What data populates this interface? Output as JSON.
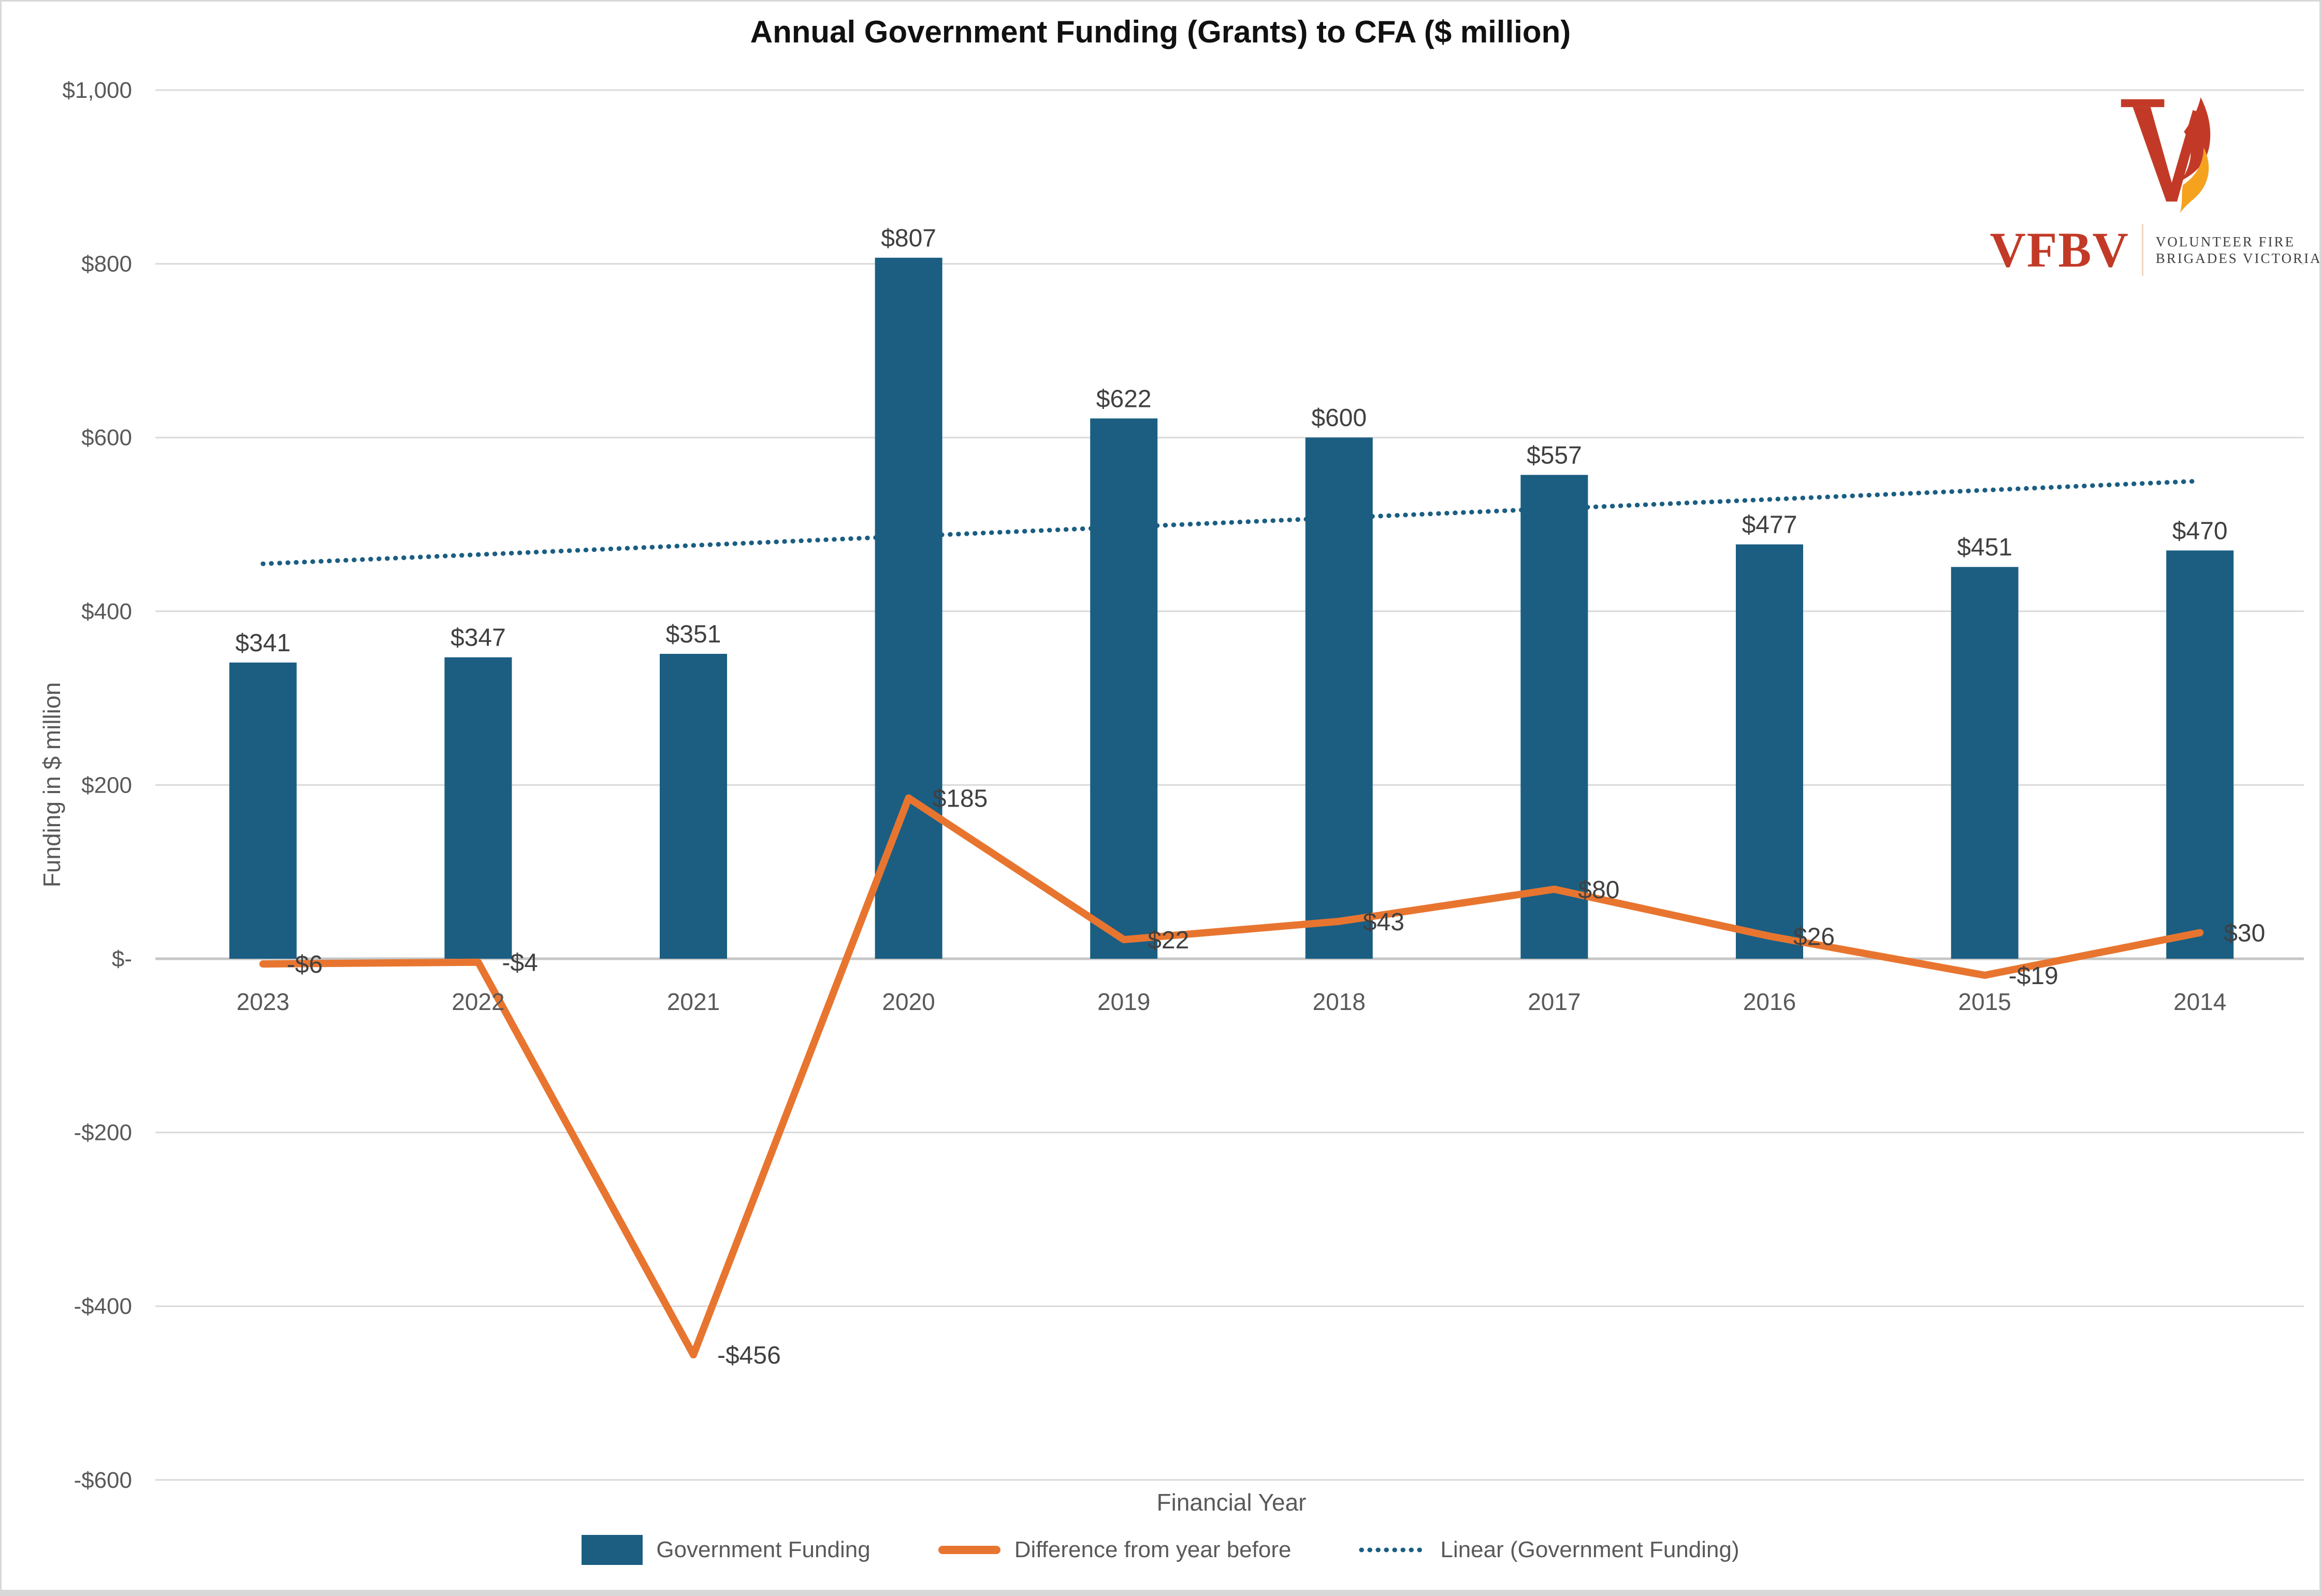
{
  "logo": {
    "acronym": "VFBV",
    "line1": "VOLUNTEER FIRE",
    "line2": "BRIGADES VICTORIA"
  },
  "colors": {
    "bar": "#1B5E82",
    "line": "#E8752F",
    "trend": "#1B5E82",
    "grid": "#D9D9D9",
    "axis_line": "#C6C6C6",
    "tick_text": "#595959",
    "data_label_text": "#404040",
    "title_text": "#111111",
    "logo_red": "#C23A27",
    "flame_orange": "#F5A21F",
    "frame_border": "#D8D8D8"
  },
  "chart_data": {
    "type": "bar",
    "title": "Annual Government Funding (Grants) to CFA ($ million)",
    "categories": [
      "2023",
      "2022",
      "2021",
      "2020",
      "2019",
      "2018",
      "2017",
      "2016",
      "2015",
      "2014"
    ],
    "series": [
      {
        "name": "Government Funding",
        "type": "bar",
        "color": "#1B5E82",
        "values": [
          341,
          347,
          351,
          807,
          622,
          600,
          557,
          477,
          451,
          470
        ],
        "data_labels": [
          "$341",
          "$347",
          "$351",
          "$807",
          "$622",
          "$600",
          "$557",
          "$477",
          "$451",
          "$470"
        ]
      },
      {
        "name": "Difference from year before",
        "type": "line",
        "color": "#E8752F",
        "values": [
          -6,
          -4,
          -456,
          185,
          22,
          43,
          80,
          26,
          -19,
          30
        ],
        "data_labels": [
          "-$6",
          "-$4",
          "-$456",
          "$185",
          "$22",
          "$43",
          "$80",
          "$26",
          "-$19",
          "$30"
        ]
      },
      {
        "name": "Linear (Government Funding)",
        "type": "linear-trend",
        "of_series": "Government Funding",
        "color": "#1B5E82",
        "style": "dotted"
      }
    ],
    "y_axis": {
      "title": "Funding in $ million",
      "min": -600,
      "max": 1000,
      "ticks": [
        {
          "value": 1000,
          "label": "$1,000"
        },
        {
          "value": 800,
          "label": "$800"
        },
        {
          "value": 600,
          "label": "$600"
        },
        {
          "value": 400,
          "label": "$400"
        },
        {
          "value": 200,
          "label": "$200"
        },
        {
          "value": 0,
          "label": "$-"
        },
        {
          "value": -200,
          "label": "-$200"
        },
        {
          "value": -400,
          "label": "-$400"
        },
        {
          "value": -600,
          "label": "-$600"
        }
      ]
    },
    "x_axis": {
      "title": "Financial Year"
    },
    "legend_position": "bottom",
    "gridlines": true
  }
}
